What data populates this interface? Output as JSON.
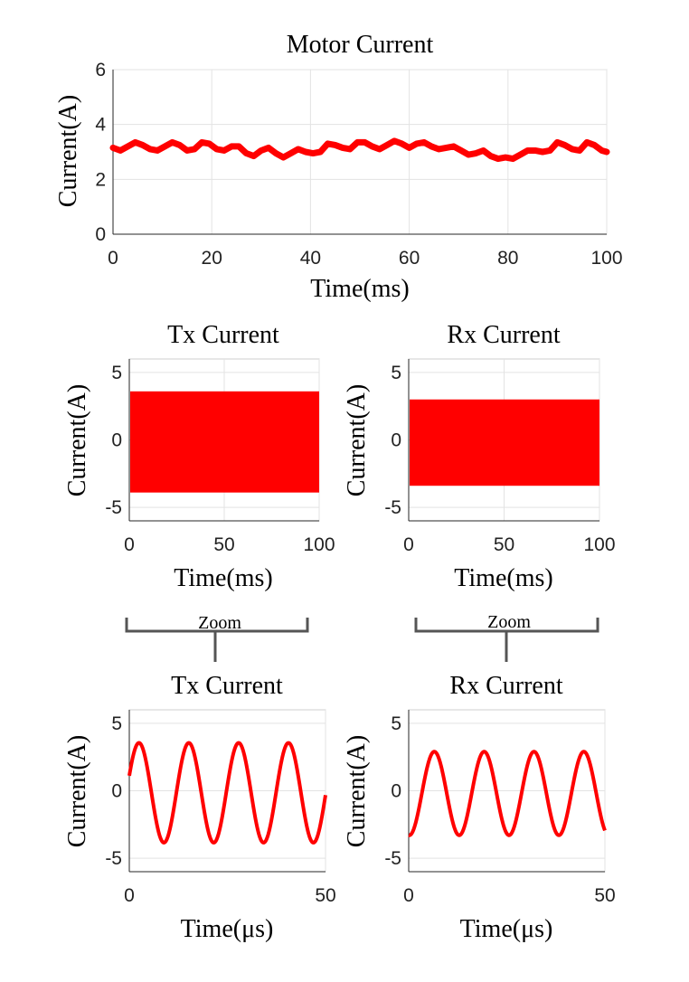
{
  "chart_data": [
    {
      "type": "line",
      "title": "Motor Current",
      "xlabel": "Time(ms)",
      "ylabel": "Current(A)",
      "xlim": [
        0,
        100
      ],
      "ylim": [
        0,
        6
      ],
      "xticks": [
        "0",
        "20",
        "40",
        "60",
        "80",
        "100"
      ],
      "yticks": [
        "0",
        "2",
        "4",
        "6"
      ],
      "grid": true,
      "series": [
        {
          "color": "#ff0000",
          "x": [
            0,
            1.5,
            3,
            4.5,
            6,
            7.5,
            9,
            10.5,
            12,
            13.5,
            15,
            16.5,
            18,
            19.5,
            21,
            22.5,
            24,
            25.5,
            27,
            28.5,
            30,
            31.5,
            33,
            34.5,
            36,
            37.5,
            39,
            40.5,
            42,
            43.5,
            45,
            46.5,
            48,
            49.5,
            51,
            52.5,
            54,
            55.5,
            57,
            58.5,
            60,
            61.5,
            63,
            64.5,
            66,
            67.5,
            69,
            70.5,
            72,
            73.5,
            75,
            76.5,
            78,
            79.5,
            81,
            82.5,
            84,
            85.5,
            87,
            88.5,
            90,
            91.5,
            93,
            94.5,
            96,
            97.5,
            99,
            100
          ],
          "y": [
            3.15,
            3.05,
            3.2,
            3.35,
            3.25,
            3.1,
            3.05,
            3.2,
            3.35,
            3.25,
            3.05,
            3.1,
            3.35,
            3.3,
            3.1,
            3.05,
            3.2,
            3.2,
            2.95,
            2.85,
            3.05,
            3.15,
            2.95,
            2.8,
            2.95,
            3.1,
            3.0,
            2.95,
            3.0,
            3.3,
            3.25,
            3.15,
            3.1,
            3.35,
            3.35,
            3.2,
            3.1,
            3.25,
            3.4,
            3.3,
            3.15,
            3.3,
            3.35,
            3.2,
            3.1,
            3.15,
            3.2,
            3.05,
            2.9,
            2.95,
            3.05,
            2.85,
            2.75,
            2.8,
            2.75,
            2.9,
            3.05,
            3.05,
            3.0,
            3.05,
            3.35,
            3.25,
            3.1,
            3.05,
            3.35,
            3.25,
            3.05,
            3.0
          ]
        }
      ]
    },
    {
      "type": "line",
      "title": "Tx Current",
      "xlabel": "Time(ms)",
      "ylabel": "Current(A)",
      "xlim": [
        0,
        100
      ],
      "ylim": [
        -6,
        6
      ],
      "xticks": [
        "0",
        "50",
        "100"
      ],
      "yticks": [
        "-5",
        "0",
        "5"
      ],
      "grid": true,
      "series": [
        {
          "color": "#ff0000",
          "envelope_upper": 3.6,
          "envelope_lower": -3.9
        }
      ]
    },
    {
      "type": "line",
      "title": "Rx Current",
      "xlabel": "Time(ms)",
      "ylabel": "Current(A)",
      "xlim": [
        0,
        100
      ],
      "ylim": [
        -6,
        6
      ],
      "xticks": [
        "0",
        "50",
        "100"
      ],
      "yticks": [
        "-5",
        "0",
        "5"
      ],
      "grid": true,
      "series": [
        {
          "color": "#ff0000",
          "envelope_upper": 3.0,
          "envelope_lower": -3.4
        }
      ]
    },
    {
      "type": "line",
      "title": "Tx Current",
      "xlabel": "Time(μs)",
      "ylabel": "Current(A)",
      "xlim": [
        0,
        50
      ],
      "ylim": [
        -6,
        6
      ],
      "xticks": [
        "0",
        "50"
      ],
      "yticks": [
        "-5",
        "0",
        "5"
      ],
      "grid": true,
      "series": [
        {
          "color": "#ff0000",
          "amplitude": 3.7,
          "offset": -0.15,
          "period_us": 12.7,
          "phase_deg": 20
        }
      ]
    },
    {
      "type": "line",
      "title": "Rx Current",
      "xlabel": "Time(μs)",
      "ylabel": "Current(A)",
      "xlim": [
        0,
        50
      ],
      "ylim": [
        -6,
        6
      ],
      "xticks": [
        "0",
        "50"
      ],
      "yticks": [
        "-5",
        "0",
        "5"
      ],
      "grid": true,
      "series": [
        {
          "color": "#ff0000",
          "amplitude": 3.1,
          "offset": -0.2,
          "period_us": 12.7,
          "phase_deg": -95
        }
      ]
    }
  ],
  "annotations": {
    "zoom_left": "Zoom",
    "zoom_right": "Zoom"
  }
}
